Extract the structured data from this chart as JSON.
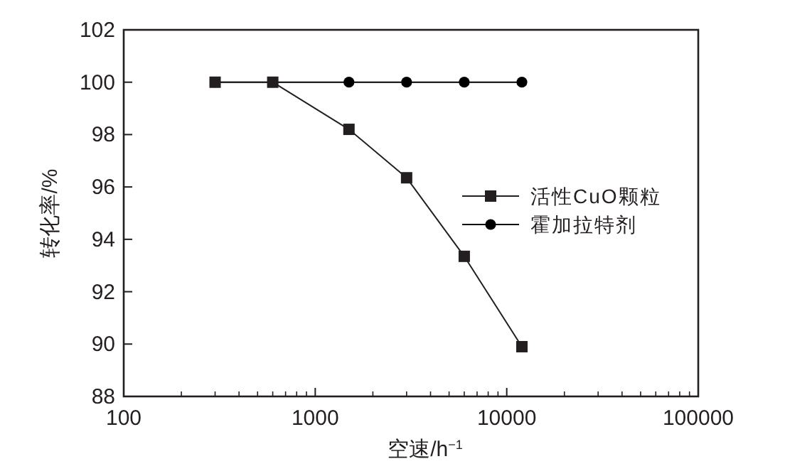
{
  "chart_data": {
    "type": "line",
    "xlabel": "空速/h$^{−1}$",
    "ylabel": "转化率/%",
    "log": "x",
    "xlim": [
      100,
      100000
    ],
    "xticks": [
      100,
      1000,
      10000,
      100000
    ],
    "ylim": [
      88,
      102
    ],
    "yticks": [
      88,
      90,
      92,
      94,
      96,
      98,
      100,
      102
    ],
    "x": [
      300,
      600,
      1500,
      3000,
      6000,
      12000
    ],
    "series": [
      {
        "name": "活性CuO颗粒",
        "color": "#231f20",
        "marker": "square",
        "values": [
          100,
          100,
          98.2,
          96.35,
          93.35,
          89.9
        ]
      },
      {
        "name": "霍加拉特剂",
        "color": "#000000",
        "marker": "circle",
        "values": [
          100,
          100,
          100,
          100,
          100,
          100
        ]
      }
    ],
    "grid": false,
    "legend": "right",
    "line_style": "solid"
  }
}
